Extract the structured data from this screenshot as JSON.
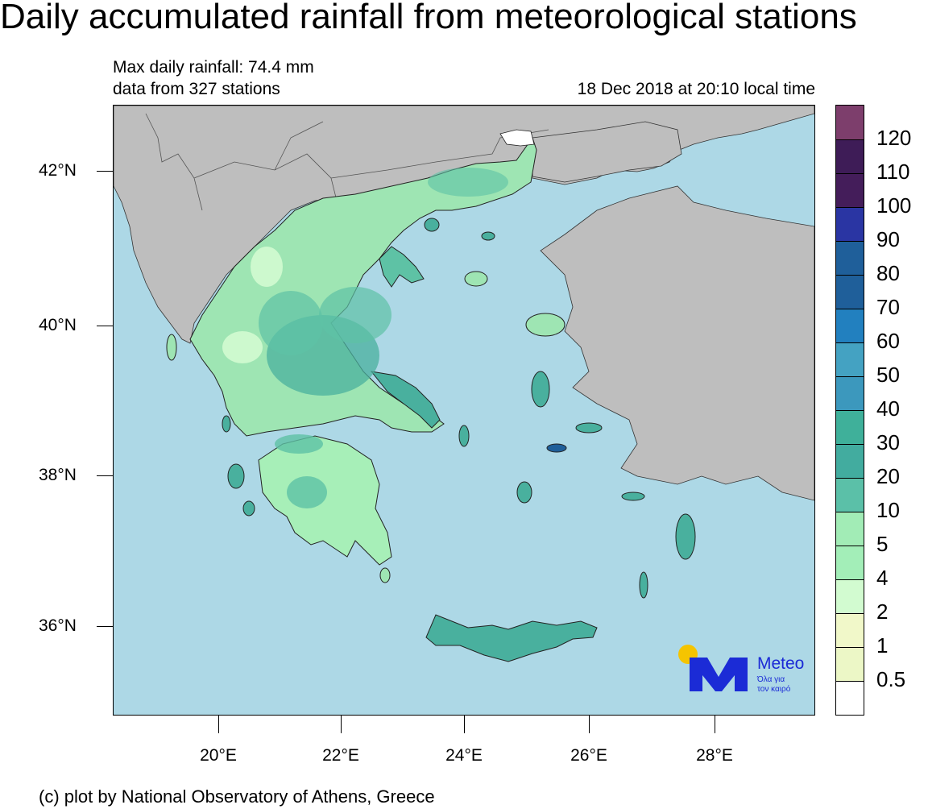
{
  "title": "Daily accumulated rainfall from meteorological stations",
  "subtitle": {
    "max_rainfall": "Max daily rainfall: 74.4 mm",
    "stations": "data from 327 stations",
    "datetime": "18 Dec 2018 at 20:10 local time"
  },
  "map": {
    "lat_labels": [
      "42°N",
      "40°N",
      "38°N",
      "36°N"
    ],
    "lon_labels": [
      "20°E",
      "22°E",
      "24°E",
      "26°E",
      "28°E"
    ],
    "colors": {
      "sea": "#add8e6",
      "land_neighbor": "#bebebe",
      "border": "#333333"
    }
  },
  "legend": {
    "labels": [
      "120",
      "110",
      "100",
      "90",
      "80",
      "70",
      "60",
      "50",
      "40",
      "30",
      "20",
      "10",
      "5",
      "4",
      "2",
      "1",
      "0.5"
    ],
    "colors": [
      "#7d3e6c",
      "#3e1c57",
      "#441d5a",
      "#2a35a3",
      "#1f5f9a",
      "#1f5f9a",
      "#2280bf",
      "#44a2c2",
      "#3c98bd",
      "#3fb09a",
      "#42ac9f",
      "#5bc0a8",
      "#a2ecb6",
      "#a3eeb8",
      "#d2fbd0",
      "#f1f8c9",
      "#ecf7c6",
      "#ffffff"
    ]
  },
  "logo": {
    "word": "Meteo",
    "tagline_1": "Όλα για",
    "tagline_2": "τον καιρό"
  },
  "footer": "(c) plot by National Observatory of Athens, Greece"
}
